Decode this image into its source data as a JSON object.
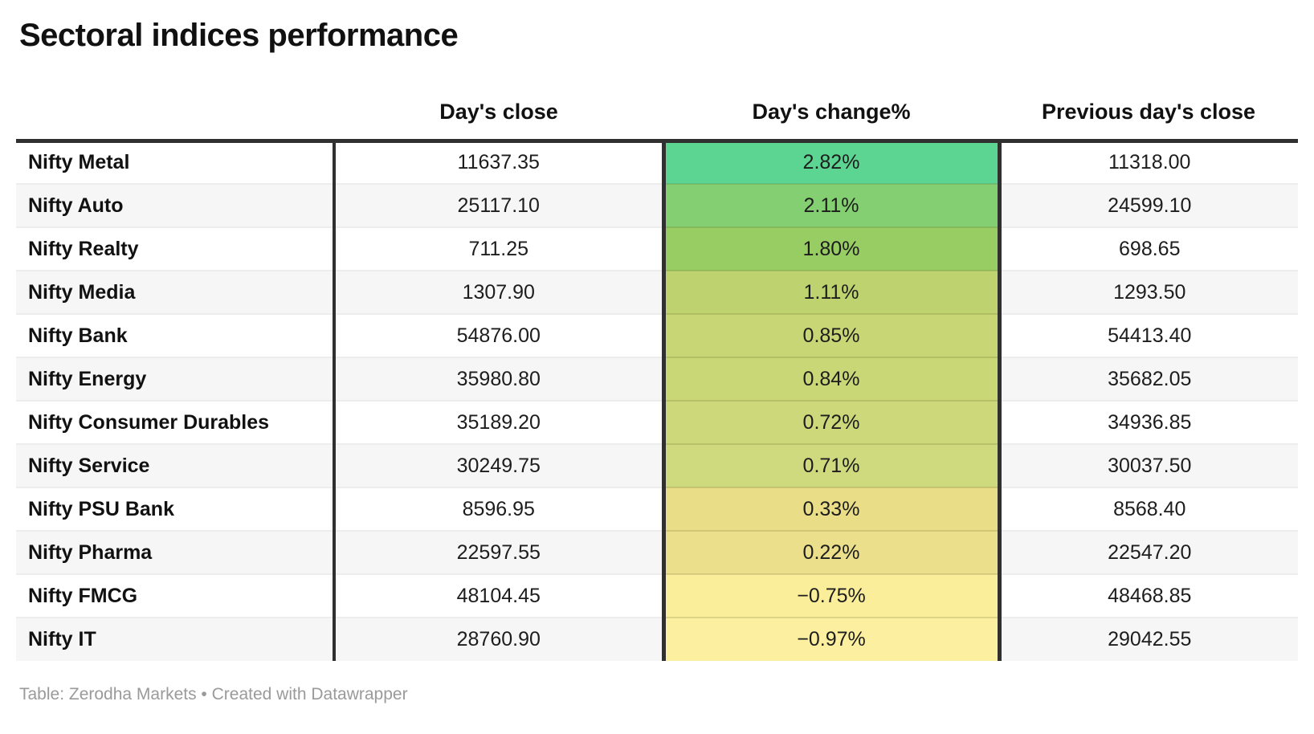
{
  "title": "Sectoral indices performance",
  "table": {
    "headers": {
      "name": "",
      "close": "Day's close",
      "change": "Day's change%",
      "prev": "Previous day's close"
    },
    "rows": [
      {
        "name": "Nifty Metal",
        "close": "11637.35",
        "change": "2.82%",
        "prev": "11318.00",
        "change_color": "#5cd592"
      },
      {
        "name": "Nifty Auto",
        "close": "25117.10",
        "change": "2.11%",
        "prev": "24599.10",
        "change_color": "#84cf71"
      },
      {
        "name": "Nifty Realty",
        "close": "711.25",
        "change": "1.80%",
        "prev": "698.65",
        "change_color": "#97cd63"
      },
      {
        "name": "Nifty Media",
        "close": "1307.90",
        "change": "1.11%",
        "prev": "1293.50",
        "change_color": "#bed36f"
      },
      {
        "name": "Nifty Bank",
        "close": "54876.00",
        "change": "0.85%",
        "prev": "54413.40",
        "change_color": "#c8d675"
      },
      {
        "name": "Nifty Energy",
        "close": "35980.80",
        "change": "0.84%",
        "prev": "35682.05",
        "change_color": "#cad777"
      },
      {
        "name": "Nifty Consumer Durables",
        "close": "35189.20",
        "change": "0.72%",
        "prev": "34936.85",
        "change_color": "#cdd87a"
      },
      {
        "name": "Nifty Service",
        "close": "30249.75",
        "change": "0.71%",
        "prev": "30037.50",
        "change_color": "#cfd97d"
      },
      {
        "name": "Nifty PSU Bank",
        "close": "8596.95",
        "change": "0.33%",
        "prev": "8568.40",
        "change_color": "#eadd87"
      },
      {
        "name": "Nifty Pharma",
        "close": "22597.55",
        "change": "0.22%",
        "prev": "22547.20",
        "change_color": "#ecdf8b"
      },
      {
        "name": "Nifty FMCG",
        "close": "48104.45",
        "change": "−0.75%",
        "prev": "48468.85",
        "change_color": "#fbee9b"
      },
      {
        "name": "Nifty IT",
        "close": "28760.90",
        "change": "−0.97%",
        "prev": "29042.55",
        "change_color": "#fcf0a0"
      }
    ]
  },
  "footer": {
    "text": "Table: Zerodha Markets • Created with Datawrapper"
  },
  "colors": {
    "border_dark": "#303030",
    "row_stripe": "#f6f6f6",
    "row_divider": "#ededed",
    "footer_text": "#9a9a9a",
    "heatmap_max_green": "#5cd592",
    "heatmap_min_yellow": "#fcf0a0"
  },
  "chart_data": {
    "type": "table",
    "title": "Sectoral indices performance",
    "columns": [
      "",
      "Day's close",
      "Day's change%",
      "Previous day's close"
    ],
    "rows": [
      [
        "Nifty Metal",
        11637.35,
        2.82,
        11318.0
      ],
      [
        "Nifty Auto",
        25117.1,
        2.11,
        24599.1
      ],
      [
        "Nifty Realty",
        711.25,
        1.8,
        698.65
      ],
      [
        "Nifty Media",
        1307.9,
        1.11,
        1293.5
      ],
      [
        "Nifty Bank",
        54876.0,
        0.85,
        54413.4
      ],
      [
        "Nifty Energy",
        35980.8,
        0.84,
        35682.05
      ],
      [
        "Nifty Consumer Durables",
        35189.2,
        0.72,
        34936.85
      ],
      [
        "Nifty Service",
        30249.75,
        0.71,
        30037.5
      ],
      [
        "Nifty PSU Bank",
        8596.95,
        0.33,
        8568.4
      ],
      [
        "Nifty Pharma",
        22597.55,
        0.22,
        22547.2
      ],
      [
        "Nifty FMCG",
        48104.45,
        -0.75,
        48468.85
      ],
      [
        "Nifty IT",
        28760.9,
        -0.97,
        29042.55
      ]
    ],
    "heatmap": {
      "column": "Day's change%",
      "scale": "green (high) to pale yellow (low)",
      "cell_colors": [
        "#5cd592",
        "#84cf71",
        "#97cd63",
        "#bed36f",
        "#c8d675",
        "#cad777",
        "#cdd87a",
        "#cfd97d",
        "#eadd87",
        "#ecdf8b",
        "#fbee9b",
        "#fcf0a0"
      ]
    },
    "source": "Table: Zerodha Markets • Created with Datawrapper"
  }
}
